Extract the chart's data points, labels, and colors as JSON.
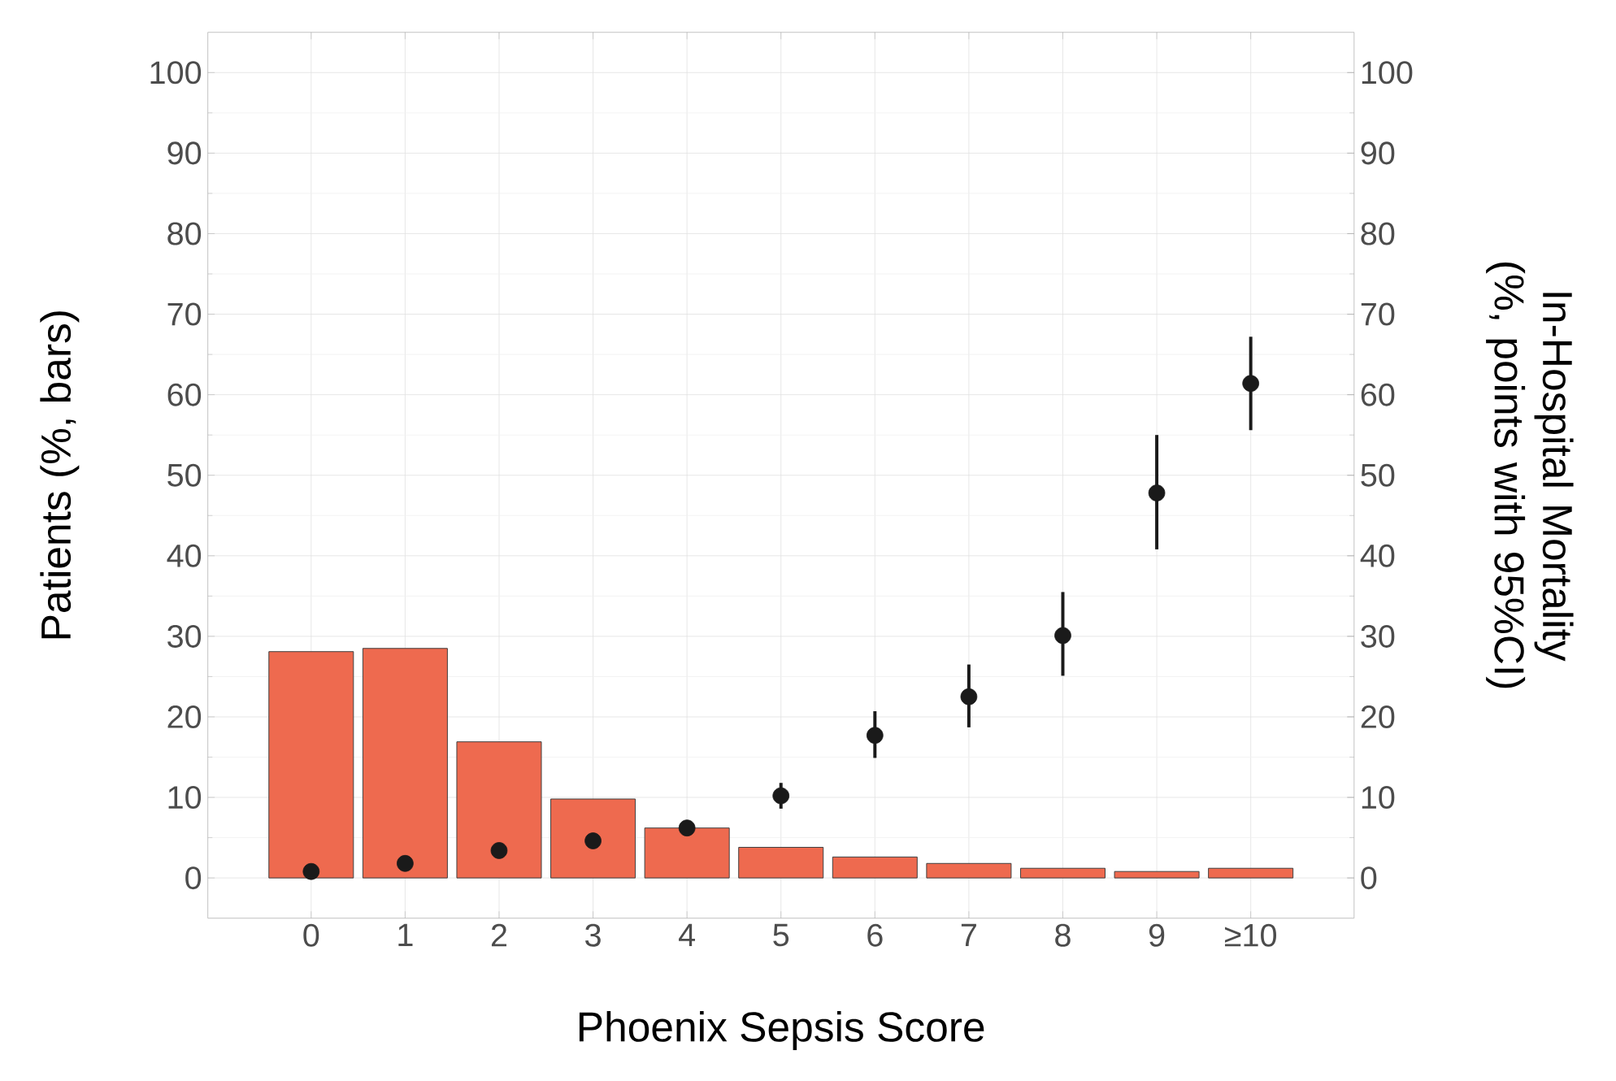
{
  "chart_data": {
    "type": "bar",
    "xlabel": "Phoenix Sepsis Score",
    "ylabel": "Patients (%, bars)",
    "y2label": "In-Hospital Mortality (%, points with 95%CI)",
    "categories": [
      "0",
      "1",
      "2",
      "3",
      "4",
      "5",
      "6",
      "7",
      "8",
      "9",
      "≥10"
    ],
    "series": [
      {
        "color": "#ee6a4f",
        "values": [
          28.1,
          28.5,
          16.9,
          9.8,
          6.2,
          3.8,
          2.6,
          1.8,
          1.2,
          0.8,
          1.2
        ]
      },
      {
        "type": "scatter",
        "axis": "y2",
        "color": "#1a1a1a",
        "marker": "circle",
        "x": [
          "0",
          "1",
          "2",
          "3",
          "4",
          "5",
          "6",
          "7",
          "8",
          "9",
          "≥10"
        ],
        "values": [
          0.8,
          1.8,
          3.4,
          4.6,
          6.2,
          10.2,
          17.7,
          22.5,
          30.1,
          47.8,
          61.4
        ],
        "errors": [
          null,
          null,
          null,
          null,
          null,
          [
            8.6,
            11.8
          ],
          [
            14.9,
            20.7
          ],
          [
            18.7,
            26.5
          ],
          [
            25.1,
            35.5
          ],
          [
            40.8,
            55.0
          ],
          [
            55.6,
            67.2
          ]
        ]
      }
    ],
    "ylim": [
      -5,
      105
    ],
    "yticks": [
      0,
      10,
      20,
      30,
      40,
      50,
      60,
      70,
      80,
      90,
      100
    ],
    "y2lim": [
      -5,
      105
    ],
    "y2ticks": [
      0,
      10,
      20,
      30,
      40,
      50,
      60,
      70,
      80,
      90,
      100
    ],
    "grid": true,
    "legend": false
  }
}
